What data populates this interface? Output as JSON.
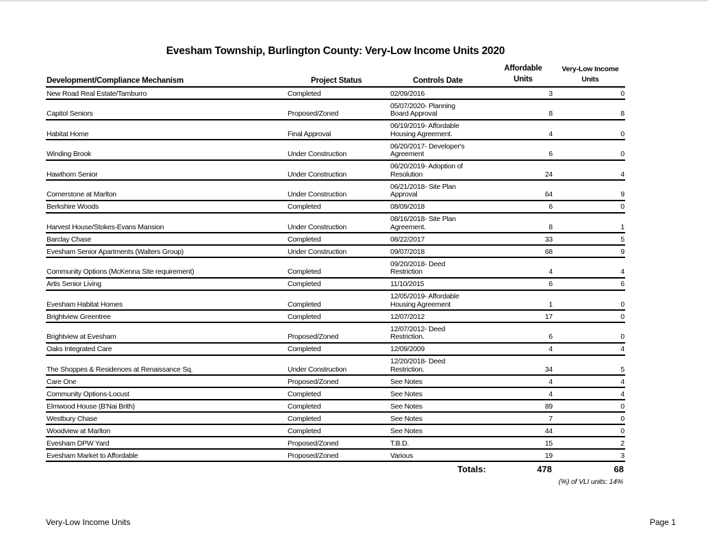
{
  "title": "Evesham Township, Burlington County: Very-Low Income Units 2020",
  "headers": {
    "name": "Development/Compliance Mechanism",
    "status": "Project Status",
    "date": "Controls Date",
    "affordable_line1": "Affordable",
    "affordable_line2": "Units",
    "vli_line1": "Very-Low Income",
    "vli_line2": "Units"
  },
  "rows": [
    {
      "name": "New Road Real Estate/Tamburro",
      "status": "Completed",
      "date": [
        "02/09/2016"
      ],
      "affordable": 3,
      "vli": 0
    },
    {
      "name": "Capitol Seniors",
      "status": "Proposed/Zoned",
      "date": [
        "05/07/2020- Planning",
        "Board Approval"
      ],
      "affordable": 8,
      "vli": 8
    },
    {
      "name": "Habitat Home",
      "status": "Final Approval",
      "date": [
        "06/19/2019- Affordable",
        "Housing Agreement."
      ],
      "affordable": 4,
      "vli": 0
    },
    {
      "name": "Winding Brook",
      "status": "Under Construction",
      "date": [
        "06/20/2017- Developer's",
        "Agreement"
      ],
      "affordable": 6,
      "vli": 0
    },
    {
      "name": "Hawthorn Senior",
      "status": "Under Construction",
      "date": [
        "06/20/2019- Adoption of",
        "Resolution"
      ],
      "affordable": 24,
      "vli": 4
    },
    {
      "name": "Cornerstone at Marlton",
      "status": "Under Construction",
      "date": [
        "06/21/2018- Site Plan",
        "Approval"
      ],
      "affordable": 64,
      "vli": 9
    },
    {
      "name": "Berkshire Woods",
      "status": "Completed",
      "date": [
        "08/09/2018"
      ],
      "affordable": 6,
      "vli": 0
    },
    {
      "name": "Harvest House/Stokes-Evans Mansion",
      "status": "Under Construction",
      "date": [
        "08/16/2018- Site Plan",
        "Agreement."
      ],
      "affordable": 8,
      "vli": 1
    },
    {
      "name": "Barclay Chase",
      "status": "Completed",
      "date": [
        "08/22/2017"
      ],
      "affordable": 33,
      "vli": 5
    },
    {
      "name": "Evesham Senior Apartments (Walters Group)",
      "status": "Under Construction",
      "date": [
        "09/07/2018"
      ],
      "affordable": 68,
      "vli": 9
    },
    {
      "name": "Community Options (McKenna Site requirement)",
      "status": "Completed",
      "date": [
        "09/20/2018- Deed",
        "Restriction"
      ],
      "affordable": 4,
      "vli": 4
    },
    {
      "name": "Artis Senior Living",
      "status": "Completed",
      "date": [
        "11/10/2015"
      ],
      "affordable": 6,
      "vli": 6
    },
    {
      "name": "Evesham Habitat Homes",
      "status": "Completed",
      "date": [
        "12/05/2019- Affordable",
        "Housing Agreement"
      ],
      "affordable": 1,
      "vli": 0
    },
    {
      "name": "Brightview Greentree",
      "status": "Completed",
      "date": [
        "12/07/2012"
      ],
      "affordable": 17,
      "vli": 0
    },
    {
      "name": "Brightview at Evesham",
      "status": "Proposed/Zoned",
      "date": [
        "12/07/2012- Deed",
        "Restriction."
      ],
      "affordable": 6,
      "vli": 0
    },
    {
      "name": "Oaks Integrated Care",
      "status": "Completed",
      "date": [
        "12/09/2009"
      ],
      "affordable": 4,
      "vli": 4
    },
    {
      "name": "The Shoppes & Residences at Renaissance Sq.",
      "status": "Under Construction",
      "date": [
        "12/20/2018- Deed",
        "Restriction."
      ],
      "affordable": 34,
      "vli": 5
    },
    {
      "name": "Care One",
      "status": "Proposed/Zoned",
      "date": [
        "See Notes"
      ],
      "affordable": 4,
      "vli": 4
    },
    {
      "name": "Community Options-Locust",
      "status": "Completed",
      "date": [
        "See Notes"
      ],
      "affordable": 4,
      "vli": 4
    },
    {
      "name": "Elmwood House (B'Nai Brith)",
      "status": "Completed",
      "date": [
        "See Notes"
      ],
      "affordable": 89,
      "vli": 0
    },
    {
      "name": "Westbury Chase",
      "status": "Completed",
      "date": [
        "See Notes"
      ],
      "affordable": 7,
      "vli": 0
    },
    {
      "name": "Woodview at Marlton",
      "status": "Completed",
      "date": [
        "See Notes"
      ],
      "affordable": 44,
      "vli": 0
    },
    {
      "name": "Evesham DPW Yard",
      "status": "Proposed/Zoned",
      "date": [
        "T.B.D."
      ],
      "affordable": 15,
      "vli": 2
    },
    {
      "name": "Evesham Market to Affordable",
      "status": "Proposed/Zoned",
      "date": [
        "Various"
      ],
      "affordable": 19,
      "vli": 3
    }
  ],
  "totals": {
    "label": "Totals:",
    "affordable": "478",
    "vli": "68"
  },
  "vli_percent": "(%) of VLI units: 14%",
  "footer": {
    "left": "Very-Low Income Units",
    "right": "Page 1"
  }
}
